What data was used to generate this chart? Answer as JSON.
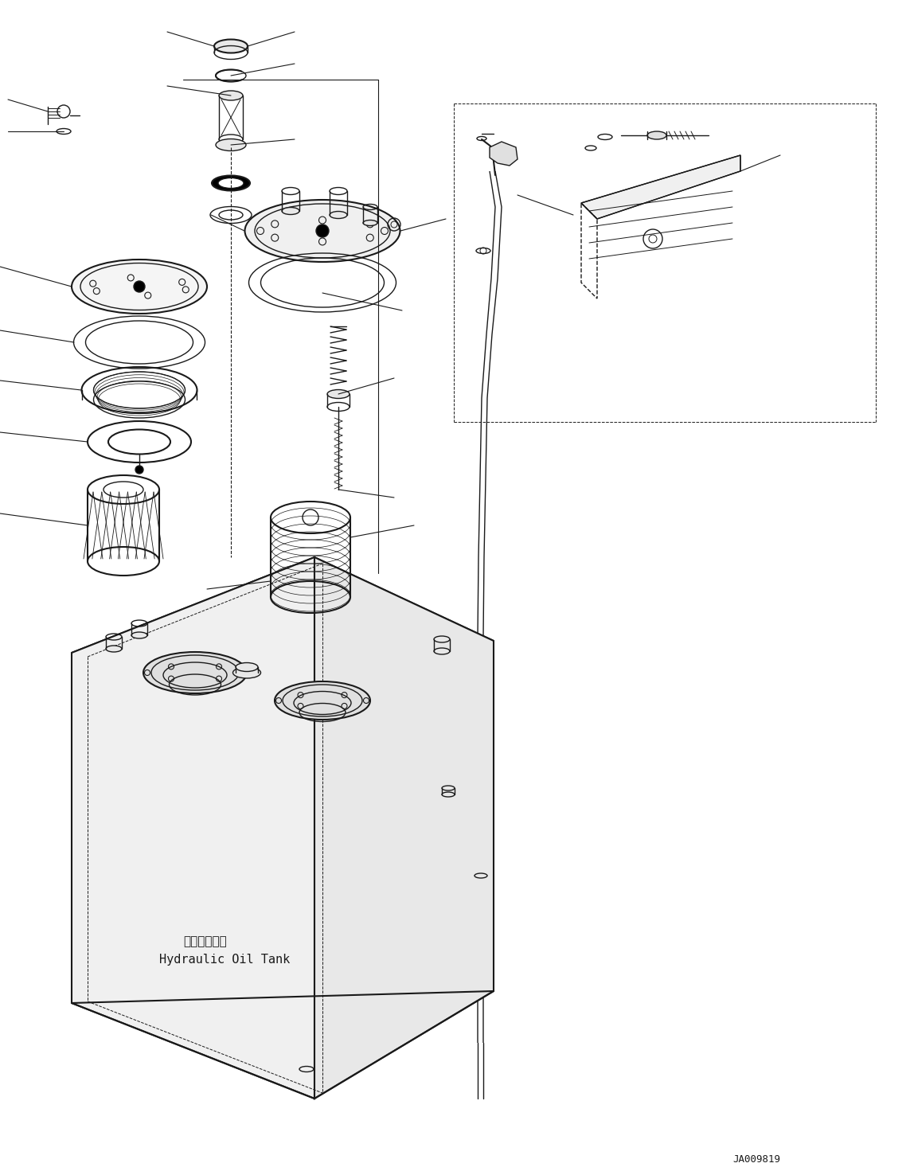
{
  "title": "",
  "background_color": "#ffffff",
  "line_color": "#1a1a1a",
  "label_ja": "作動油タンク",
  "label_en": "Hydraulic Oil Tank",
  "part_number": "JA009819",
  "figsize": [
    11.43,
    14.71
  ],
  "dpi": 100
}
